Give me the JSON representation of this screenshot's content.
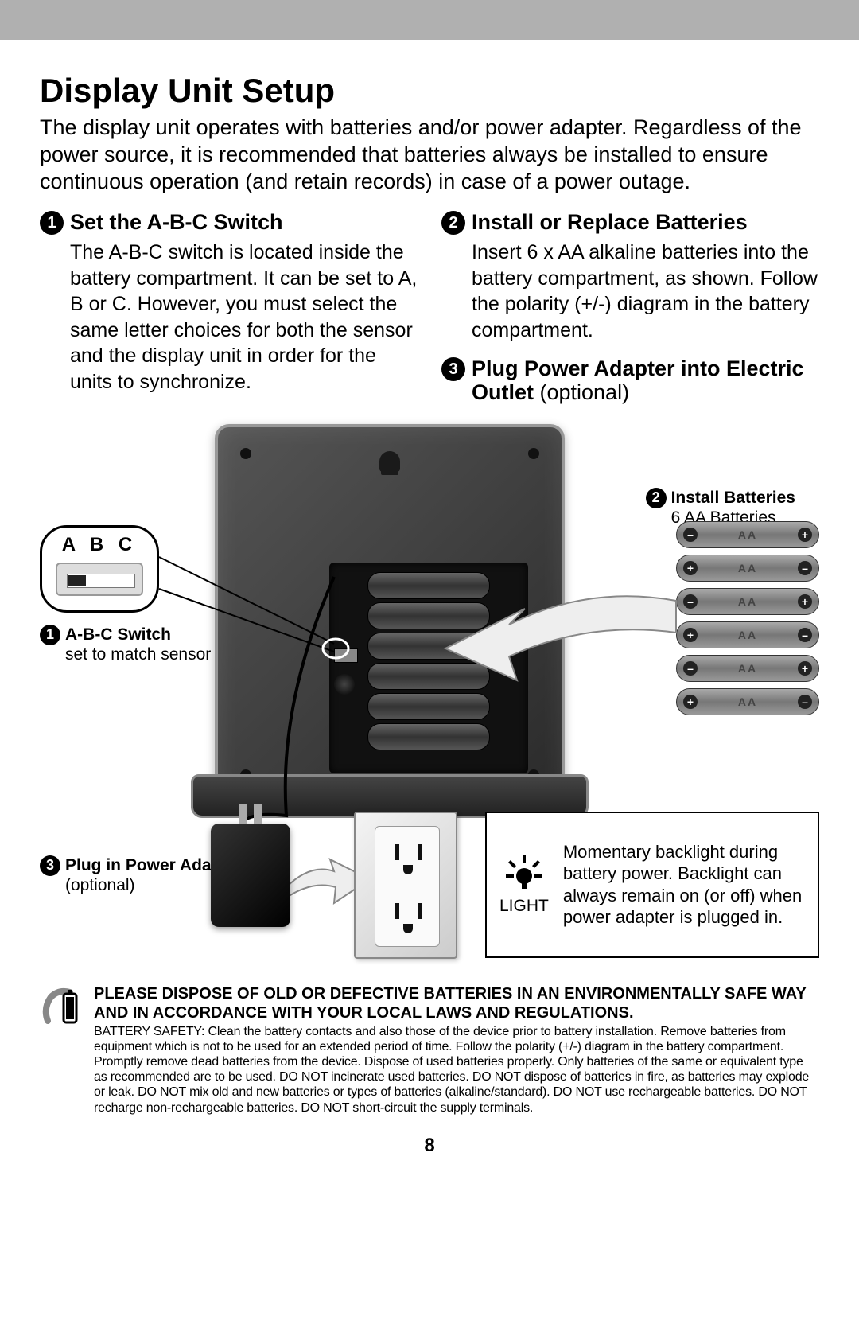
{
  "title": "Display Unit Setup",
  "intro": "The display unit operates with batteries and/or power adapter. Regardless of the power source, it is recommended that batteries always be installed to ensure continuous operation (and retain records) in case of a power outage.",
  "step1": {
    "num": "1",
    "title": "Set the A-B-C Switch",
    "body": "The A-B-C switch is located inside the battery compartment. It can be set to A, B or C. However, you must select the same letter choices for both the sensor and the display unit in order for the units to synchronize."
  },
  "step2": {
    "num": "2",
    "title": "Install or Replace Batteries",
    "body": "Insert 6 x AA alkaline batteries into the battery compartment, as shown. Follow the polarity (+/-) diagram in the battery compartment."
  },
  "step3": {
    "num": "3",
    "title_main": "Plug Power Adapter into Electric Outlet",
    "title_opt": " (optional)"
  },
  "abc_label": "A B C",
  "callout1": {
    "num": "1",
    "title": "A-B-C Switch",
    "sub": "set to match sensor"
  },
  "callout2": {
    "num": "2",
    "title": "Install Batteries",
    "sub": "6 AA Batteries"
  },
  "callout3": {
    "num": "3",
    "title": "Plug in Power Adapter",
    "sub": "(optional)"
  },
  "batteries": [
    {
      "left": "–",
      "right": "+"
    },
    {
      "left": "+",
      "right": "–"
    },
    {
      "left": "–",
      "right": "+"
    },
    {
      "left": "+",
      "right": "–"
    },
    {
      "left": "–",
      "right": "+"
    },
    {
      "left": "+",
      "right": "–"
    }
  ],
  "aa_label": "AA",
  "light": {
    "label": "LIGHT",
    "text": "Momentary backlight during battery power. Backlight can always remain on (or off) when power adapter is plugged in."
  },
  "warn": {
    "bold": "PLEASE DISPOSE OF OLD OR DEFECTIVE BATTERIES IN AN ENVIRONMENTALLY SAFE WAY AND IN ACCORDANCE WITH YOUR LOCAL LAWS AND REGULATIONS.",
    "fine": "BATTERY SAFETY: Clean the battery contacts and also those of the device prior to battery installation. Remove batteries from equipment which is not to be used for an extended period of time. Follow the polarity (+/-) diagram in the battery compartment. Promptly remove dead batteries from the device. Dispose of used batteries properly. Only batteries of the same or equivalent type as recommended are to be used. DO NOT incinerate used batteries. DO NOT dispose of batteries in fire, as batteries may explode or leak. DO NOT mix old and new batteries or types of batteries (alkaline/standard). DO NOT use rechargeable batteries. DO NOT recharge non-rechargeable batteries. DO NOT short-circuit the supply terminals."
  },
  "page": "8",
  "colors": {
    "topbar": "#b0b0b0",
    "text": "#000000",
    "device_dark": "#2a2a2a",
    "battery_body": "#888888"
  }
}
